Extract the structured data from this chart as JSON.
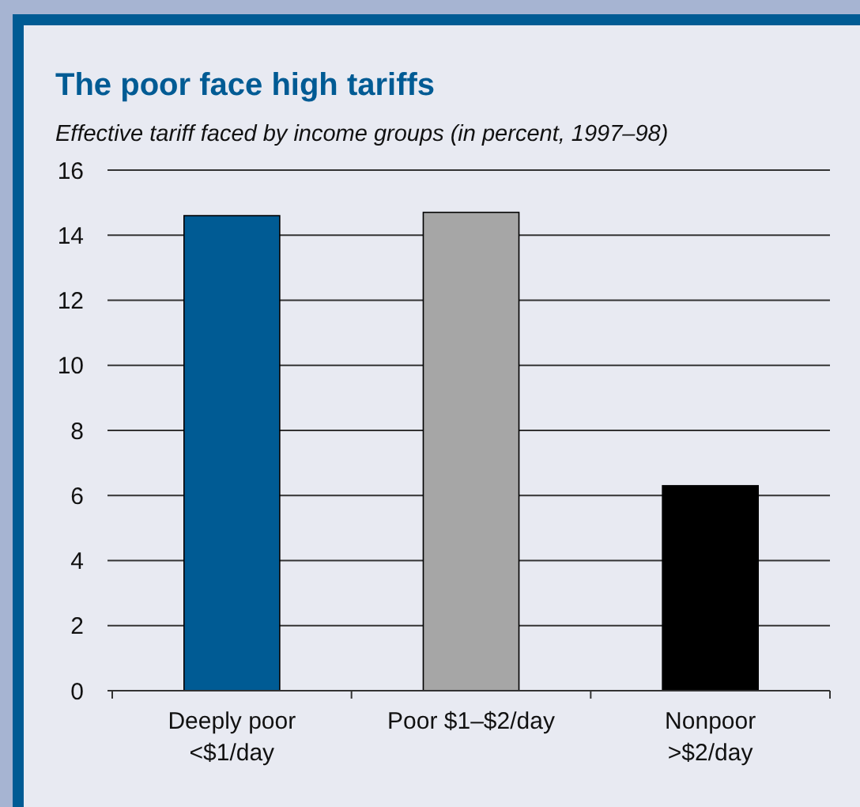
{
  "chart_data": {
    "type": "bar",
    "title": "The poor face high tariffs",
    "subtitle": "Effective tariff faced by income groups (in percent, 1997–98)",
    "categories": [
      "Deeply poor\n<$1/day",
      "Poor $1–$2/day",
      "Nonpoor\n>$2/day"
    ],
    "values": [
      14.6,
      14.7,
      6.3
    ],
    "colors": [
      "#005b94",
      "#a6a6a6",
      "#000000"
    ],
    "ylim": [
      0,
      16
    ],
    "yticks": [
      0,
      2,
      4,
      6,
      8,
      10,
      12,
      14,
      16
    ],
    "grid": "y"
  }
}
